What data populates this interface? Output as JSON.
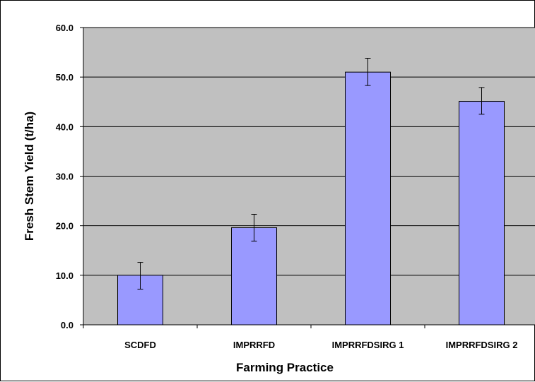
{
  "chart_data": {
    "type": "bar",
    "title": "",
    "xlabel": "Farming Practice",
    "ylabel": "Fresh Stem Yield (t/ha)",
    "categories": [
      "SCDFD",
      "IMPRRFD",
      "IMPRRFDSIRG 1",
      "IMPRRFDSIRG 2"
    ],
    "values": [
      10.0,
      19.6,
      51.0,
      45.1
    ],
    "error_low": [
      7.2,
      16.9,
      48.3,
      42.5
    ],
    "error_high": [
      12.6,
      22.3,
      53.8,
      47.9
    ],
    "ylim": [
      0,
      60
    ],
    "yticks": [
      "0.0",
      "10.0",
      "20.0",
      "30.0",
      "40.0",
      "50.0",
      "60.0"
    ],
    "grid": true,
    "legend": "none",
    "colors": {
      "bar_fill": "#9999ff",
      "bar_stroke": "#000000",
      "plot_background": "#c0c0c0",
      "gridline": "#000000"
    }
  }
}
